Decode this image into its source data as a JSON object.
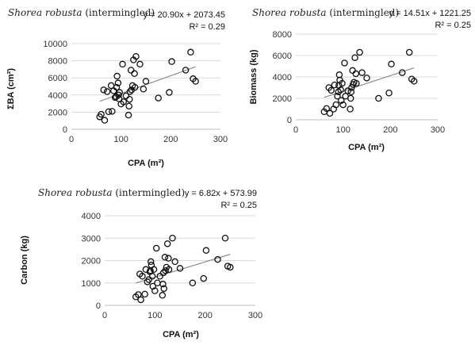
{
  "chart_data": [
    {
      "type": "scatter",
      "title_species": "Shorea robusta",
      "title_rest": " (intermingled)",
      "equation": "y = 20.90x + 2073.45",
      "r2": "R² = 0.29",
      "trendline": {
        "slope": 20.9,
        "intercept": 2073.45
      },
      "xlabel": "CPA (m²)",
      "ylabel": "ΣBA (cm²)",
      "xlim": [
        0,
        300
      ],
      "ylim": [
        0,
        10000
      ],
      "xticks": [
        0,
        100,
        200,
        300
      ],
      "yticks": [
        0,
        2000,
        4000,
        6000,
        8000,
        10000
      ],
      "grid": "horizontal",
      "points": [
        [
          57,
          1450
        ],
        [
          60,
          1750
        ],
        [
          65,
          4600
        ],
        [
          67,
          1050
        ],
        [
          72,
          4400
        ],
        [
          75,
          2050
        ],
        [
          80,
          5100
        ],
        [
          82,
          2100
        ],
        [
          85,
          4500
        ],
        [
          88,
          3700
        ],
        [
          90,
          3800
        ],
        [
          91,
          4900
        ],
        [
          92,
          6200
        ],
        [
          94,
          5400
        ],
        [
          95,
          4000
        ],
        [
          96,
          3550
        ],
        [
          97,
          4300
        ],
        [
          100,
          2950
        ],
        [
          103,
          7600
        ],
        [
          105,
          3200
        ],
        [
          110,
          3900
        ],
        [
          115,
          1650
        ],
        [
          116,
          2700
        ],
        [
          117,
          3500
        ],
        [
          118,
          4400
        ],
        [
          120,
          6900
        ],
        [
          121,
          4600
        ],
        [
          123,
          5100
        ],
        [
          125,
          8100
        ],
        [
          127,
          6500
        ],
        [
          128,
          4900
        ],
        [
          130,
          8500
        ],
        [
          138,
          7600
        ],
        [
          145,
          4700
        ],
        [
          150,
          5600
        ],
        [
          175,
          3650
        ],
        [
          197,
          4300
        ],
        [
          202,
          7900
        ],
        [
          230,
          6900
        ],
        [
          240,
          9000
        ],
        [
          245,
          5900
        ],
        [
          250,
          5600
        ]
      ]
    },
    {
      "type": "scatter",
      "title_species": "Shorea robusta",
      "title_rest": " (intermingled)",
      "equation": "y = 14.51x + 1221.25",
      "r2": "R² = 0.25",
      "trendline": {
        "slope": 14.51,
        "intercept": 1221.25
      },
      "xlabel": "CPA (m²)",
      "ylabel": "Biomass (kg)",
      "xlim": [
        0,
        300
      ],
      "ylim": [
        0,
        8000
      ],
      "xticks": [
        0,
        100,
        200,
        300
      ],
      "yticks": [
        0,
        2000,
        4000,
        6000,
        8000
      ],
      "grid": "horizontal",
      "points": [
        [
          60,
          750
        ],
        [
          65,
          1050
        ],
        [
          70,
          3000
        ],
        [
          72,
          600
        ],
        [
          75,
          2750
        ],
        [
          80,
          1000
        ],
        [
          82,
          3250
        ],
        [
          85,
          1400
        ],
        [
          88,
          2200
        ],
        [
          90,
          2600
        ],
        [
          91,
          3200
        ],
        [
          92,
          4200
        ],
        [
          93,
          3700
        ],
        [
          95,
          2800
        ],
        [
          96,
          1800
        ],
        [
          98,
          3400
        ],
        [
          100,
          1400
        ],
        [
          103,
          5300
        ],
        [
          105,
          2200
        ],
        [
          110,
          2700
        ],
        [
          115,
          1000
        ],
        [
          116,
          2000
        ],
        [
          117,
          2600
        ],
        [
          118,
          3000
        ],
        [
          120,
          4600
        ],
        [
          121,
          3300
        ],
        [
          123,
          3500
        ],
        [
          125,
          5800
        ],
        [
          127,
          4300
        ],
        [
          128,
          3400
        ],
        [
          135,
          6300
        ],
        [
          140,
          4400
        ],
        [
          150,
          3900
        ],
        [
          175,
          2000
        ],
        [
          197,
          2500
        ],
        [
          202,
          5200
        ],
        [
          225,
          4400
        ],
        [
          240,
          6300
        ],
        [
          245,
          3800
        ],
        [
          250,
          3600
        ]
      ]
    },
    {
      "type": "scatter",
      "title_species": "Shorea robusta",
      "title_rest": " (intermingled)",
      "equation": "y = 6.82x + 573.99",
      "r2": "R² = 0.25",
      "trendline": {
        "slope": 6.82,
        "intercept": 573.99
      },
      "xlabel": "CPA (m²)",
      "ylabel": "Carbon (kg)",
      "xlim": [
        0,
        300
      ],
      "ylim": [
        0,
        4000
      ],
      "xticks": [
        0,
        100,
        200,
        300
      ],
      "yticks": [
        0,
        1000,
        2000,
        3000,
        4000
      ],
      "grid": "horizontal",
      "points": [
        [
          62,
          380
        ],
        [
          67,
          480
        ],
        [
          70,
          1400
        ],
        [
          72,
          250
        ],
        [
          75,
          1300
        ],
        [
          80,
          500
        ],
        [
          82,
          1600
        ],
        [
          85,
          1050
        ],
        [
          88,
          1150
        ],
        [
          90,
          1500
        ],
        [
          91,
          1550
        ],
        [
          92,
          1950
        ],
        [
          93,
          1800
        ],
        [
          95,
          1300
        ],
        [
          96,
          850
        ],
        [
          98,
          1600
        ],
        [
          100,
          650
        ],
        [
          103,
          2550
        ],
        [
          105,
          1000
        ],
        [
          110,
          1300
        ],
        [
          115,
          450
        ],
        [
          116,
          950
        ],
        [
          117,
          1450
        ],
        [
          118,
          750
        ],
        [
          120,
          2150
        ],
        [
          121,
          1550
        ],
        [
          123,
          1700
        ],
        [
          125,
          2750
        ],
        [
          127,
          2100
        ],
        [
          128,
          1600
        ],
        [
          135,
          3000
        ],
        [
          140,
          1950
        ],
        [
          150,
          1650
        ],
        [
          175,
          1000
        ],
        [
          197,
          1200
        ],
        [
          202,
          2450
        ],
        [
          225,
          2050
        ],
        [
          240,
          3000
        ],
        [
          245,
          1750
        ],
        [
          250,
          1700
        ]
      ]
    }
  ]
}
